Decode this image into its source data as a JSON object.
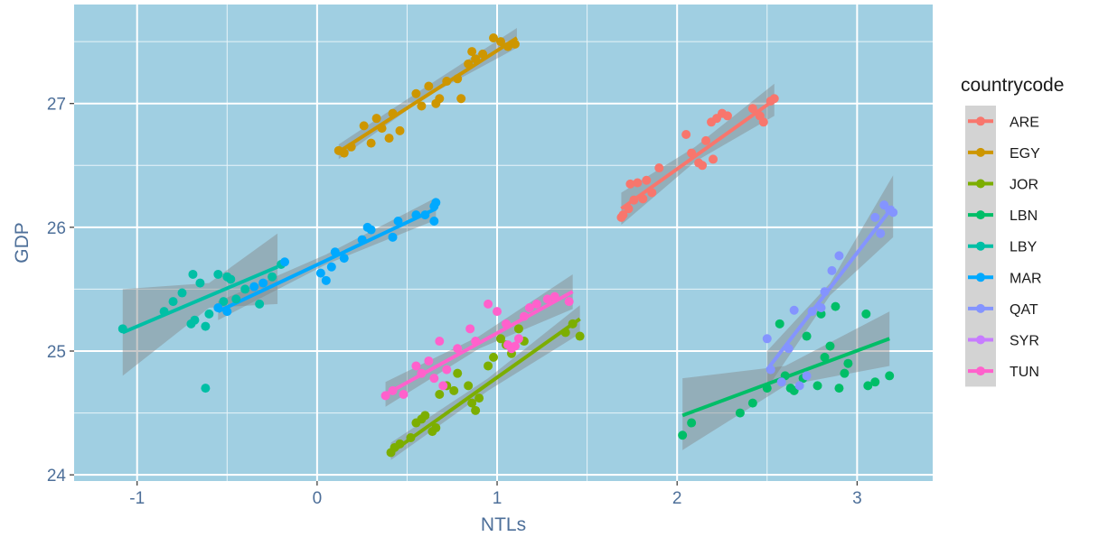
{
  "chart_data": {
    "type": "scatter",
    "xlabel": "NTLs",
    "ylabel": "GDP",
    "xlim": [
      -1.35,
      3.42
    ],
    "ylim": [
      23.95,
      27.8
    ],
    "xticks": [
      -1,
      0,
      1,
      2,
      3
    ],
    "yticks": [
      24,
      25,
      26,
      27
    ],
    "grid": true,
    "panel_color": "#a0cfe2",
    "legend": {
      "title": "countrycode",
      "placement": "right",
      "background": "#d3d3d3"
    },
    "series": [
      {
        "name": "ARE",
        "color": "#f8766d",
        "points": [
          [
            1.69,
            26.08
          ],
          [
            1.7,
            26.1
          ],
          [
            1.73,
            26.15
          ],
          [
            1.74,
            26.35
          ],
          [
            1.76,
            26.22
          ],
          [
            1.78,
            26.36
          ],
          [
            1.81,
            26.23
          ],
          [
            1.83,
            26.38
          ],
          [
            1.86,
            26.28
          ],
          [
            1.9,
            26.48
          ],
          [
            2.05,
            26.75
          ],
          [
            2.08,
            26.6
          ],
          [
            2.12,
            26.52
          ],
          [
            2.14,
            26.5
          ],
          [
            2.16,
            26.7
          ],
          [
            2.19,
            26.85
          ],
          [
            2.22,
            26.88
          ],
          [
            2.25,
            26.92
          ],
          [
            2.28,
            26.9
          ],
          [
            2.2,
            26.55
          ],
          [
            2.42,
            26.96
          ],
          [
            2.46,
            26.9
          ],
          [
            2.48,
            26.85
          ],
          [
            2.52,
            27.02
          ],
          [
            2.54,
            27.04
          ]
        ],
        "fit": [
          [
            1.69,
            26.15
          ],
          [
            2.54,
            27.03
          ]
        ],
        "band": [
          [
            1.69,
            26.02,
            26.28
          ],
          [
            2.1,
            26.53,
            26.65
          ],
          [
            2.54,
            26.9,
            27.16
          ]
        ]
      },
      {
        "name": "EGY",
        "color": "#cd9600",
        "points": [
          [
            0.12,
            26.62
          ],
          [
            0.15,
            26.6
          ],
          [
            0.19,
            26.65
          ],
          [
            0.26,
            26.82
          ],
          [
            0.3,
            26.68
          ],
          [
            0.33,
            26.88
          ],
          [
            0.36,
            26.8
          ],
          [
            0.4,
            26.72
          ],
          [
            0.42,
            26.92
          ],
          [
            0.46,
            26.78
          ],
          [
            0.55,
            27.08
          ],
          [
            0.58,
            26.98
          ],
          [
            0.62,
            27.14
          ],
          [
            0.66,
            27.0
          ],
          [
            0.68,
            27.04
          ],
          [
            0.72,
            27.18
          ],
          [
            0.78,
            27.2
          ],
          [
            0.8,
            27.04
          ],
          [
            0.84,
            27.32
          ],
          [
            0.86,
            27.42
          ],
          [
            0.88,
            27.36
          ],
          [
            0.92,
            27.4
          ],
          [
            0.98,
            27.53
          ],
          [
            1.02,
            27.5
          ],
          [
            1.06,
            27.46
          ],
          [
            1.1,
            27.48
          ]
        ],
        "fit": [
          [
            0.12,
            26.61
          ],
          [
            1.11,
            27.53
          ]
        ],
        "band": [
          [
            0.12,
            26.55,
            26.67
          ],
          [
            0.6,
            27.05,
            27.13
          ],
          [
            1.11,
            27.45,
            27.61
          ]
        ]
      },
      {
        "name": "JOR",
        "color": "#7cae00",
        "points": [
          [
            0.41,
            24.18
          ],
          [
            0.43,
            24.22
          ],
          [
            0.46,
            24.25
          ],
          [
            0.52,
            24.3
          ],
          [
            0.55,
            24.42
          ],
          [
            0.58,
            24.45
          ],
          [
            0.6,
            24.48
          ],
          [
            0.64,
            24.35
          ],
          [
            0.66,
            24.38
          ],
          [
            0.68,
            24.65
          ],
          [
            0.72,
            24.72
          ],
          [
            0.76,
            24.68
          ],
          [
            0.78,
            24.82
          ],
          [
            0.84,
            24.72
          ],
          [
            0.86,
            24.58
          ],
          [
            0.88,
            24.52
          ],
          [
            0.9,
            24.62
          ],
          [
            0.95,
            24.88
          ],
          [
            0.98,
            24.95
          ],
          [
            1.02,
            25.1
          ],
          [
            1.05,
            25.05
          ],
          [
            1.08,
            24.98
          ],
          [
            1.12,
            25.18
          ],
          [
            1.38,
            25.15
          ],
          [
            1.42,
            25.22
          ],
          [
            1.46,
            25.12
          ],
          [
            1.15,
            25.08
          ]
        ],
        "fit": [
          [
            0.41,
            24.18
          ],
          [
            1.46,
            25.26
          ]
        ],
        "band": [
          [
            0.41,
            24.12,
            24.26
          ],
          [
            0.95,
            24.68,
            24.78
          ],
          [
            1.46,
            25.14,
            25.37
          ]
        ]
      },
      {
        "name": "LBN",
        "color": "#00be67",
        "points": [
          [
            2.03,
            24.32
          ],
          [
            2.08,
            24.42
          ],
          [
            2.35,
            24.5
          ],
          [
            2.42,
            24.58
          ],
          [
            2.57,
            25.22
          ],
          [
            2.63,
            24.7
          ],
          [
            2.65,
            24.68
          ],
          [
            2.72,
            25.12
          ],
          [
            2.78,
            24.72
          ],
          [
            2.82,
            24.95
          ],
          [
            2.85,
            25.04
          ],
          [
            2.88,
            25.36
          ],
          [
            2.9,
            24.7
          ],
          [
            2.93,
            24.82
          ],
          [
            2.95,
            24.9
          ],
          [
            3.05,
            25.3
          ],
          [
            3.06,
            24.72
          ],
          [
            3.1,
            24.75
          ],
          [
            3.18,
            24.8
          ],
          [
            2.5,
            24.7
          ],
          [
            2.6,
            24.8
          ],
          [
            2.7,
            24.78
          ],
          [
            2.8,
            25.3
          ]
        ],
        "fit": [
          [
            2.03,
            24.48
          ],
          [
            3.18,
            25.1
          ]
        ],
        "band": [
          [
            2.03,
            24.2,
            24.78
          ],
          [
            2.6,
            24.72,
            24.88
          ],
          [
            3.18,
            24.88,
            25.32
          ]
        ]
      },
      {
        "name": "LBY",
        "color": "#00bfa5",
        "points": [
          [
            -1.08,
            25.18
          ],
          [
            -0.85,
            25.32
          ],
          [
            -0.75,
            25.47
          ],
          [
            -0.69,
            25.62
          ],
          [
            -0.65,
            25.55
          ],
          [
            -0.62,
            25.2
          ],
          [
            -0.6,
            25.3
          ],
          [
            -0.55,
            25.62
          ],
          [
            -0.5,
            25.6
          ],
          [
            -0.48,
            25.58
          ],
          [
            -0.45,
            25.42
          ],
          [
            -0.4,
            25.5
          ],
          [
            -0.32,
            25.38
          ],
          [
            -0.62,
            24.7
          ],
          [
            -0.7,
            25.22
          ],
          [
            -0.25,
            25.6
          ],
          [
            -0.2,
            25.7
          ],
          [
            -0.52,
            25.4
          ],
          [
            -0.8,
            25.4
          ],
          [
            -0.68,
            25.25
          ]
        ],
        "fit": [
          [
            -1.08,
            25.15
          ],
          [
            -0.22,
            25.68
          ]
        ],
        "band": [
          [
            -1.08,
            24.8,
            25.5
          ],
          [
            -0.6,
            25.35,
            25.55
          ],
          [
            -0.22,
            25.38,
            25.95
          ]
        ]
      },
      {
        "name": "MAR",
        "color": "#00a9ff",
        "points": [
          [
            -0.55,
            25.35
          ],
          [
            -0.5,
            25.32
          ],
          [
            -0.35,
            25.52
          ],
          [
            -0.3,
            25.55
          ],
          [
            -0.18,
            25.72
          ],
          [
            0.02,
            25.63
          ],
          [
            0.05,
            25.57
          ],
          [
            0.08,
            25.68
          ],
          [
            0.1,
            25.8
          ],
          [
            0.15,
            25.75
          ],
          [
            0.25,
            25.9
          ],
          [
            0.28,
            26.0
          ],
          [
            0.3,
            25.98
          ],
          [
            0.42,
            25.92
          ],
          [
            0.45,
            26.05
          ],
          [
            0.55,
            26.1
          ],
          [
            0.6,
            26.1
          ],
          [
            0.65,
            26.17
          ],
          [
            0.66,
            26.2
          ],
          [
            0.65,
            26.05
          ]
        ],
        "fit": [
          [
            -0.55,
            25.32
          ],
          [
            0.66,
            26.15
          ]
        ],
        "band": [
          [
            -0.55,
            25.25,
            25.4
          ],
          [
            0.05,
            25.7,
            25.78
          ],
          [
            0.66,
            26.06,
            26.24
          ]
        ]
      },
      {
        "name": "QAT",
        "color": "#8494ff",
        "points": [
          [
            2.5,
            25.1
          ],
          [
            2.52,
            24.85
          ],
          [
            2.58,
            24.75
          ],
          [
            2.62,
            25.02
          ],
          [
            2.65,
            25.33
          ],
          [
            2.68,
            24.72
          ],
          [
            2.72,
            24.8
          ],
          [
            2.75,
            25.32
          ],
          [
            2.82,
            25.48
          ],
          [
            2.86,
            25.65
          ],
          [
            2.9,
            25.77
          ],
          [
            3.1,
            26.08
          ],
          [
            3.13,
            25.95
          ],
          [
            3.15,
            26.18
          ],
          [
            3.18,
            26.14
          ],
          [
            3.2,
            26.12
          ],
          [
            2.8,
            25.35
          ]
        ],
        "fit": [
          [
            2.5,
            24.85
          ],
          [
            3.2,
            26.17
          ]
        ],
        "band": [
          [
            2.5,
            24.7,
            25.0
          ],
          [
            2.85,
            25.45,
            25.55
          ],
          [
            3.2,
            25.92,
            26.42
          ]
        ]
      },
      {
        "name": "SYR",
        "color": "#c77cff",
        "points": [],
        "fit": [],
        "band": []
      },
      {
        "name": "TUN",
        "color": "#ff61cc",
        "points": [
          [
            0.38,
            24.64
          ],
          [
            0.42,
            24.68
          ],
          [
            0.48,
            24.65
          ],
          [
            0.55,
            24.88
          ],
          [
            0.58,
            24.82
          ],
          [
            0.62,
            24.92
          ],
          [
            0.65,
            24.78
          ],
          [
            0.68,
            25.08
          ],
          [
            0.7,
            24.72
          ],
          [
            0.72,
            24.85
          ],
          [
            0.78,
            25.02
          ],
          [
            0.85,
            25.18
          ],
          [
            0.88,
            25.08
          ],
          [
            0.95,
            25.38
          ],
          [
            1.0,
            25.32
          ],
          [
            1.05,
            25.22
          ],
          [
            1.06,
            25.05
          ],
          [
            1.08,
            25.02
          ],
          [
            1.1,
            25.04
          ],
          [
            1.12,
            25.1
          ],
          [
            1.15,
            25.28
          ],
          [
            1.18,
            25.35
          ],
          [
            1.22,
            25.38
          ],
          [
            1.28,
            25.42
          ],
          [
            1.32,
            25.44
          ],
          [
            1.4,
            25.4
          ]
        ],
        "fit": [
          [
            0.38,
            24.65
          ],
          [
            1.42,
            25.48
          ]
        ],
        "band": [
          [
            0.38,
            24.55,
            24.75
          ],
          [
            0.9,
            25.02,
            25.12
          ],
          [
            1.42,
            25.34,
            25.62
          ]
        ]
      }
    ]
  }
}
